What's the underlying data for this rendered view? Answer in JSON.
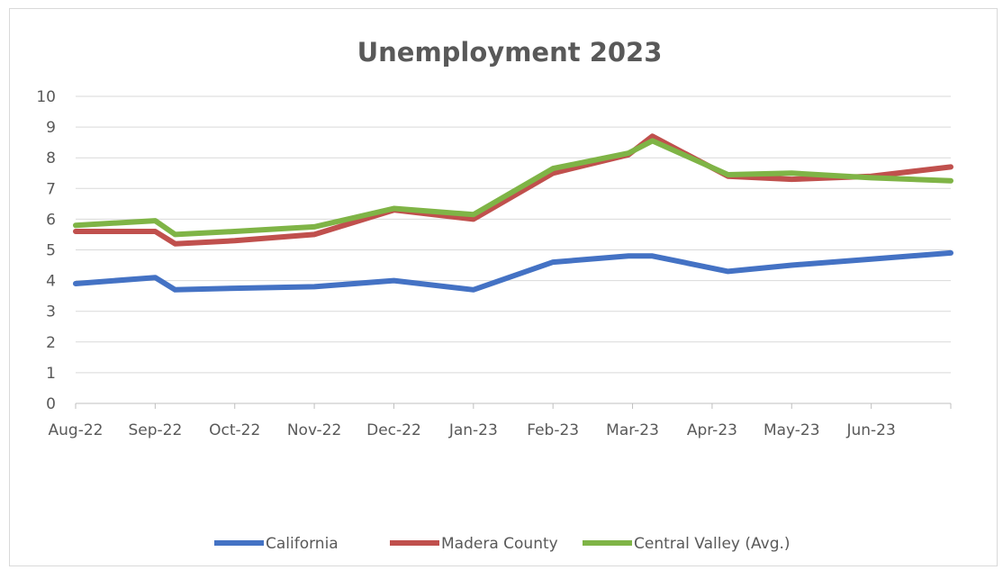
{
  "chart_data": {
    "type": "line",
    "title": "Unemployment 2023",
    "xlabel": "",
    "ylabel": "",
    "ylim": [
      0,
      10
    ],
    "yticks": [
      0,
      1,
      2,
      3,
      4,
      5,
      6,
      7,
      8,
      9,
      10
    ],
    "categories": [
      "Aug-22",
      "Sep-22",
      "Oct-22",
      "Nov-22",
      "Dec-22",
      "Jan-23",
      "Feb-23",
      "Mar-23",
      "Apr-23",
      "May-23",
      "Jun-23"
    ],
    "x": [
      0,
      1,
      1.25,
      2,
      3,
      4,
      5,
      6,
      6.95,
      7.25,
      8.2,
      9,
      10,
      11
    ],
    "series": [
      {
        "name": "California",
        "color": "#4472c4",
        "values": [
          3.9,
          4.1,
          3.7,
          3.75,
          3.8,
          4.0,
          3.7,
          4.6,
          4.8,
          4.8,
          4.3,
          4.5,
          4.7,
          4.9
        ]
      },
      {
        "name": "Madera County",
        "color": "#c0504d",
        "values": [
          5.6,
          5.6,
          5.2,
          5.3,
          5.5,
          6.3,
          6.0,
          7.5,
          8.1,
          8.7,
          7.4,
          7.3,
          7.4,
          7.7
        ]
      },
      {
        "name": "Central Valley  (Avg.)",
        "color": "#7fb446",
        "values": [
          5.8,
          5.95,
          5.5,
          5.6,
          5.75,
          6.35,
          6.15,
          7.65,
          8.15,
          8.55,
          7.45,
          7.5,
          7.35,
          7.25
        ]
      }
    ],
    "grid": true,
    "legend_position": "bottom"
  }
}
